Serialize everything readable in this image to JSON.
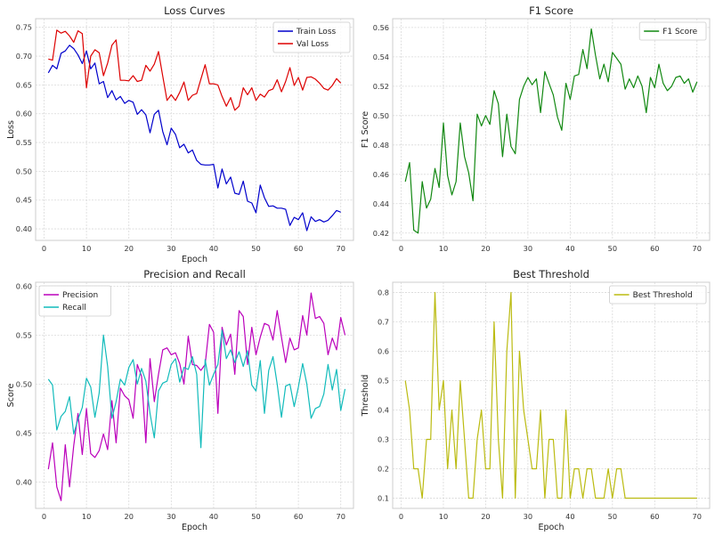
{
  "chart_data": [
    {
      "id": "loss",
      "type": "line",
      "title": "Loss Curves",
      "xlabel": "Epoch",
      "ylabel": "Loss",
      "xlim": [
        -2,
        73
      ],
      "ylim": [
        0.38,
        0.765
      ],
      "xticks": [
        0,
        10,
        20,
        30,
        40,
        50,
        60,
        70
      ],
      "yticks": [
        0.4,
        0.45,
        0.5,
        0.55,
        0.6,
        0.65,
        0.7,
        0.75
      ],
      "ytick_labels": [
        "0.40",
        "0.45",
        "0.50",
        "0.55",
        "0.60",
        "0.65",
        "0.70",
        "0.75"
      ],
      "grid": true,
      "legend_position": "top-right",
      "x_start": 1,
      "series": [
        {
          "name": "Train Loss",
          "color": "#0000cc",
          "values": [
            0.671,
            0.684,
            0.678,
            0.705,
            0.709,
            0.719,
            0.713,
            0.702,
            0.687,
            0.709,
            0.678,
            0.688,
            0.652,
            0.656,
            0.628,
            0.64,
            0.624,
            0.63,
            0.618,
            0.623,
            0.62,
            0.599,
            0.607,
            0.598,
            0.567,
            0.599,
            0.606,
            0.569,
            0.546,
            0.575,
            0.564,
            0.541,
            0.547,
            0.532,
            0.537,
            0.519,
            0.512,
            0.511,
            0.511,
            0.512,
            0.471,
            0.504,
            0.478,
            0.49,
            0.462,
            0.46,
            0.483,
            0.448,
            0.445,
            0.428,
            0.476,
            0.454,
            0.439,
            0.44,
            0.436,
            0.436,
            0.434,
            0.406,
            0.42,
            0.416,
            0.428,
            0.397,
            0.421,
            0.413,
            0.416,
            0.412,
            0.415,
            0.423,
            0.432,
            0.429
          ]
        },
        {
          "name": "Val Loss",
          "color": "#dd0000",
          "values": [
            0.695,
            0.693,
            0.745,
            0.74,
            0.743,
            0.735,
            0.724,
            0.744,
            0.739,
            0.645,
            0.7,
            0.711,
            0.706,
            0.666,
            0.688,
            0.719,
            0.728,
            0.658,
            0.658,
            0.657,
            0.666,
            0.656,
            0.658,
            0.684,
            0.674,
            0.686,
            0.708,
            0.665,
            0.623,
            0.633,
            0.623,
            0.637,
            0.655,
            0.623,
            0.632,
            0.635,
            0.66,
            0.685,
            0.652,
            0.652,
            0.65,
            0.63,
            0.613,
            0.628,
            0.606,
            0.613,
            0.645,
            0.633,
            0.645,
            0.623,
            0.634,
            0.629,
            0.64,
            0.643,
            0.659,
            0.638,
            0.656,
            0.68,
            0.649,
            0.663,
            0.641,
            0.663,
            0.664,
            0.66,
            0.653,
            0.644,
            0.641,
            0.649,
            0.661,
            0.653
          ]
        }
      ]
    },
    {
      "id": "f1",
      "type": "line",
      "title": "F1 Score",
      "xlabel": "",
      "ylabel": "F1 Score",
      "xlim": [
        -2,
        73
      ],
      "ylim": [
        0.415,
        0.566
      ],
      "xticks": [
        0,
        10,
        20,
        30,
        40,
        50,
        60,
        70
      ],
      "yticks": [
        0.42,
        0.44,
        0.46,
        0.48,
        0.5,
        0.52,
        0.54,
        0.56
      ],
      "ytick_labels": [
        "0.42",
        "0.44",
        "0.46",
        "0.48",
        "0.50",
        "0.52",
        "0.54",
        "0.56"
      ],
      "grid": true,
      "legend_position": "top-right",
      "x_start": 1,
      "series": [
        {
          "name": "F1 Score",
          "color": "#118811",
          "values": [
            0.455,
            0.468,
            0.422,
            0.42,
            0.455,
            0.437,
            0.443,
            0.464,
            0.451,
            0.495,
            0.459,
            0.446,
            0.455,
            0.495,
            0.472,
            0.461,
            0.442,
            0.501,
            0.493,
            0.5,
            0.494,
            0.517,
            0.508,
            0.472,
            0.501,
            0.479,
            0.474,
            0.511,
            0.52,
            0.526,
            0.521,
            0.525,
            0.502,
            0.53,
            0.522,
            0.514,
            0.499,
            0.49,
            0.522,
            0.511,
            0.527,
            0.528,
            0.545,
            0.532,
            0.559,
            0.541,
            0.525,
            0.535,
            0.523,
            0.543,
            0.539,
            0.535,
            0.518,
            0.525,
            0.519,
            0.527,
            0.52,
            0.502,
            0.526,
            0.519,
            0.535,
            0.522,
            0.517,
            0.52,
            0.526,
            0.527,
            0.522,
            0.525,
            0.516,
            0.523
          ]
        }
      ]
    },
    {
      "id": "pr",
      "type": "line",
      "title": "Precision and Recall",
      "xlabel": "Epoch",
      "ylabel": "Score",
      "xlim": [
        -2,
        73
      ],
      "ylim": [
        0.373,
        0.604
      ],
      "xticks": [
        0,
        10,
        20,
        30,
        40,
        50,
        60,
        70
      ],
      "yticks": [
        0.4,
        0.45,
        0.5,
        0.55,
        0.6
      ],
      "ytick_labels": [
        "0.40",
        "0.45",
        "0.50",
        "0.55",
        "0.60"
      ],
      "grid": true,
      "legend_position": "top-left",
      "x_start": 1,
      "series": [
        {
          "name": "Precision",
          "color": "#bb00bb",
          "values": [
            0.413,
            0.44,
            0.395,
            0.381,
            0.438,
            0.395,
            0.437,
            0.47,
            0.428,
            0.475,
            0.429,
            0.425,
            0.432,
            0.449,
            0.433,
            0.483,
            0.44,
            0.496,
            0.488,
            0.484,
            0.465,
            0.52,
            0.508,
            0.44,
            0.526,
            0.482,
            0.51,
            0.535,
            0.537,
            0.53,
            0.532,
            0.521,
            0.5,
            0.549,
            0.52,
            0.519,
            0.514,
            0.52,
            0.561,
            0.553,
            0.47,
            0.558,
            0.54,
            0.551,
            0.51,
            0.575,
            0.569,
            0.52,
            0.558,
            0.53,
            0.548,
            0.562,
            0.56,
            0.545,
            0.575,
            0.548,
            0.522,
            0.547,
            0.535,
            0.537,
            0.57,
            0.55,
            0.593,
            0.567,
            0.569,
            0.562,
            0.53,
            0.547,
            0.535,
            0.568,
            0.55
          ]
        },
        {
          "name": "Recall",
          "color": "#11bbbb",
          "values": [
            0.505,
            0.499,
            0.453,
            0.467,
            0.472,
            0.487,
            0.449,
            0.464,
            0.476,
            0.506,
            0.497,
            0.466,
            0.491,
            0.55,
            0.518,
            0.465,
            0.482,
            0.505,
            0.499,
            0.517,
            0.525,
            0.5,
            0.516,
            0.503,
            0.47,
            0.445,
            0.493,
            0.501,
            0.503,
            0.52,
            0.526,
            0.502,
            0.517,
            0.515,
            0.528,
            0.51,
            0.435,
            0.525,
            0.499,
            0.51,
            0.52,
            0.555,
            0.526,
            0.535,
            0.522,
            0.533,
            0.518,
            0.534,
            0.499,
            0.493,
            0.524,
            0.47,
            0.514,
            0.528,
            0.5,
            0.466,
            0.498,
            0.5,
            0.477,
            0.497,
            0.521,
            0.5,
            0.465,
            0.475,
            0.477,
            0.49,
            0.52,
            0.494,
            0.515,
            0.473,
            0.495
          ]
        }
      ]
    },
    {
      "id": "thr",
      "type": "line",
      "title": "Best Threshold",
      "xlabel": "Epoch",
      "ylabel": "Threshold",
      "xlim": [
        -2,
        73
      ],
      "ylim": [
        0.065,
        0.835
      ],
      "xticks": [
        0,
        10,
        20,
        30,
        40,
        50,
        60,
        70
      ],
      "yticks": [
        0.1,
        0.2,
        0.3,
        0.4,
        0.5,
        0.6,
        0.7,
        0.8
      ],
      "ytick_labels": [
        "0.1",
        "0.2",
        "0.3",
        "0.4",
        "0.5",
        "0.6",
        "0.7",
        "0.8"
      ],
      "grid": true,
      "legend_position": "top-right",
      "x_start": 1,
      "series": [
        {
          "name": "Best Threshold",
          "color": "#bbbb11",
          "values": [
            0.5,
            0.4,
            0.2,
            0.2,
            0.1,
            0.3,
            0.3,
            0.8,
            0.4,
            0.5,
            0.2,
            0.4,
            0.2,
            0.5,
            0.3,
            0.1,
            0.1,
            0.3,
            0.4,
            0.2,
            0.2,
            0.7,
            0.3,
            0.1,
            0.6,
            0.8,
            0.1,
            0.6,
            0.4,
            0.3,
            0.2,
            0.2,
            0.4,
            0.1,
            0.3,
            0.3,
            0.1,
            0.1,
            0.4,
            0.1,
            0.2,
            0.2,
            0.1,
            0.2,
            0.2,
            0.1,
            0.1,
            0.1,
            0.2,
            0.1,
            0.2,
            0.2,
            0.1,
            0.1,
            0.1,
            0.1,
            0.1,
            0.1,
            0.1,
            0.1,
            0.1,
            0.1,
            0.1,
            0.1,
            0.1,
            0.1,
            0.1,
            0.1,
            0.1,
            0.1
          ]
        }
      ]
    }
  ]
}
